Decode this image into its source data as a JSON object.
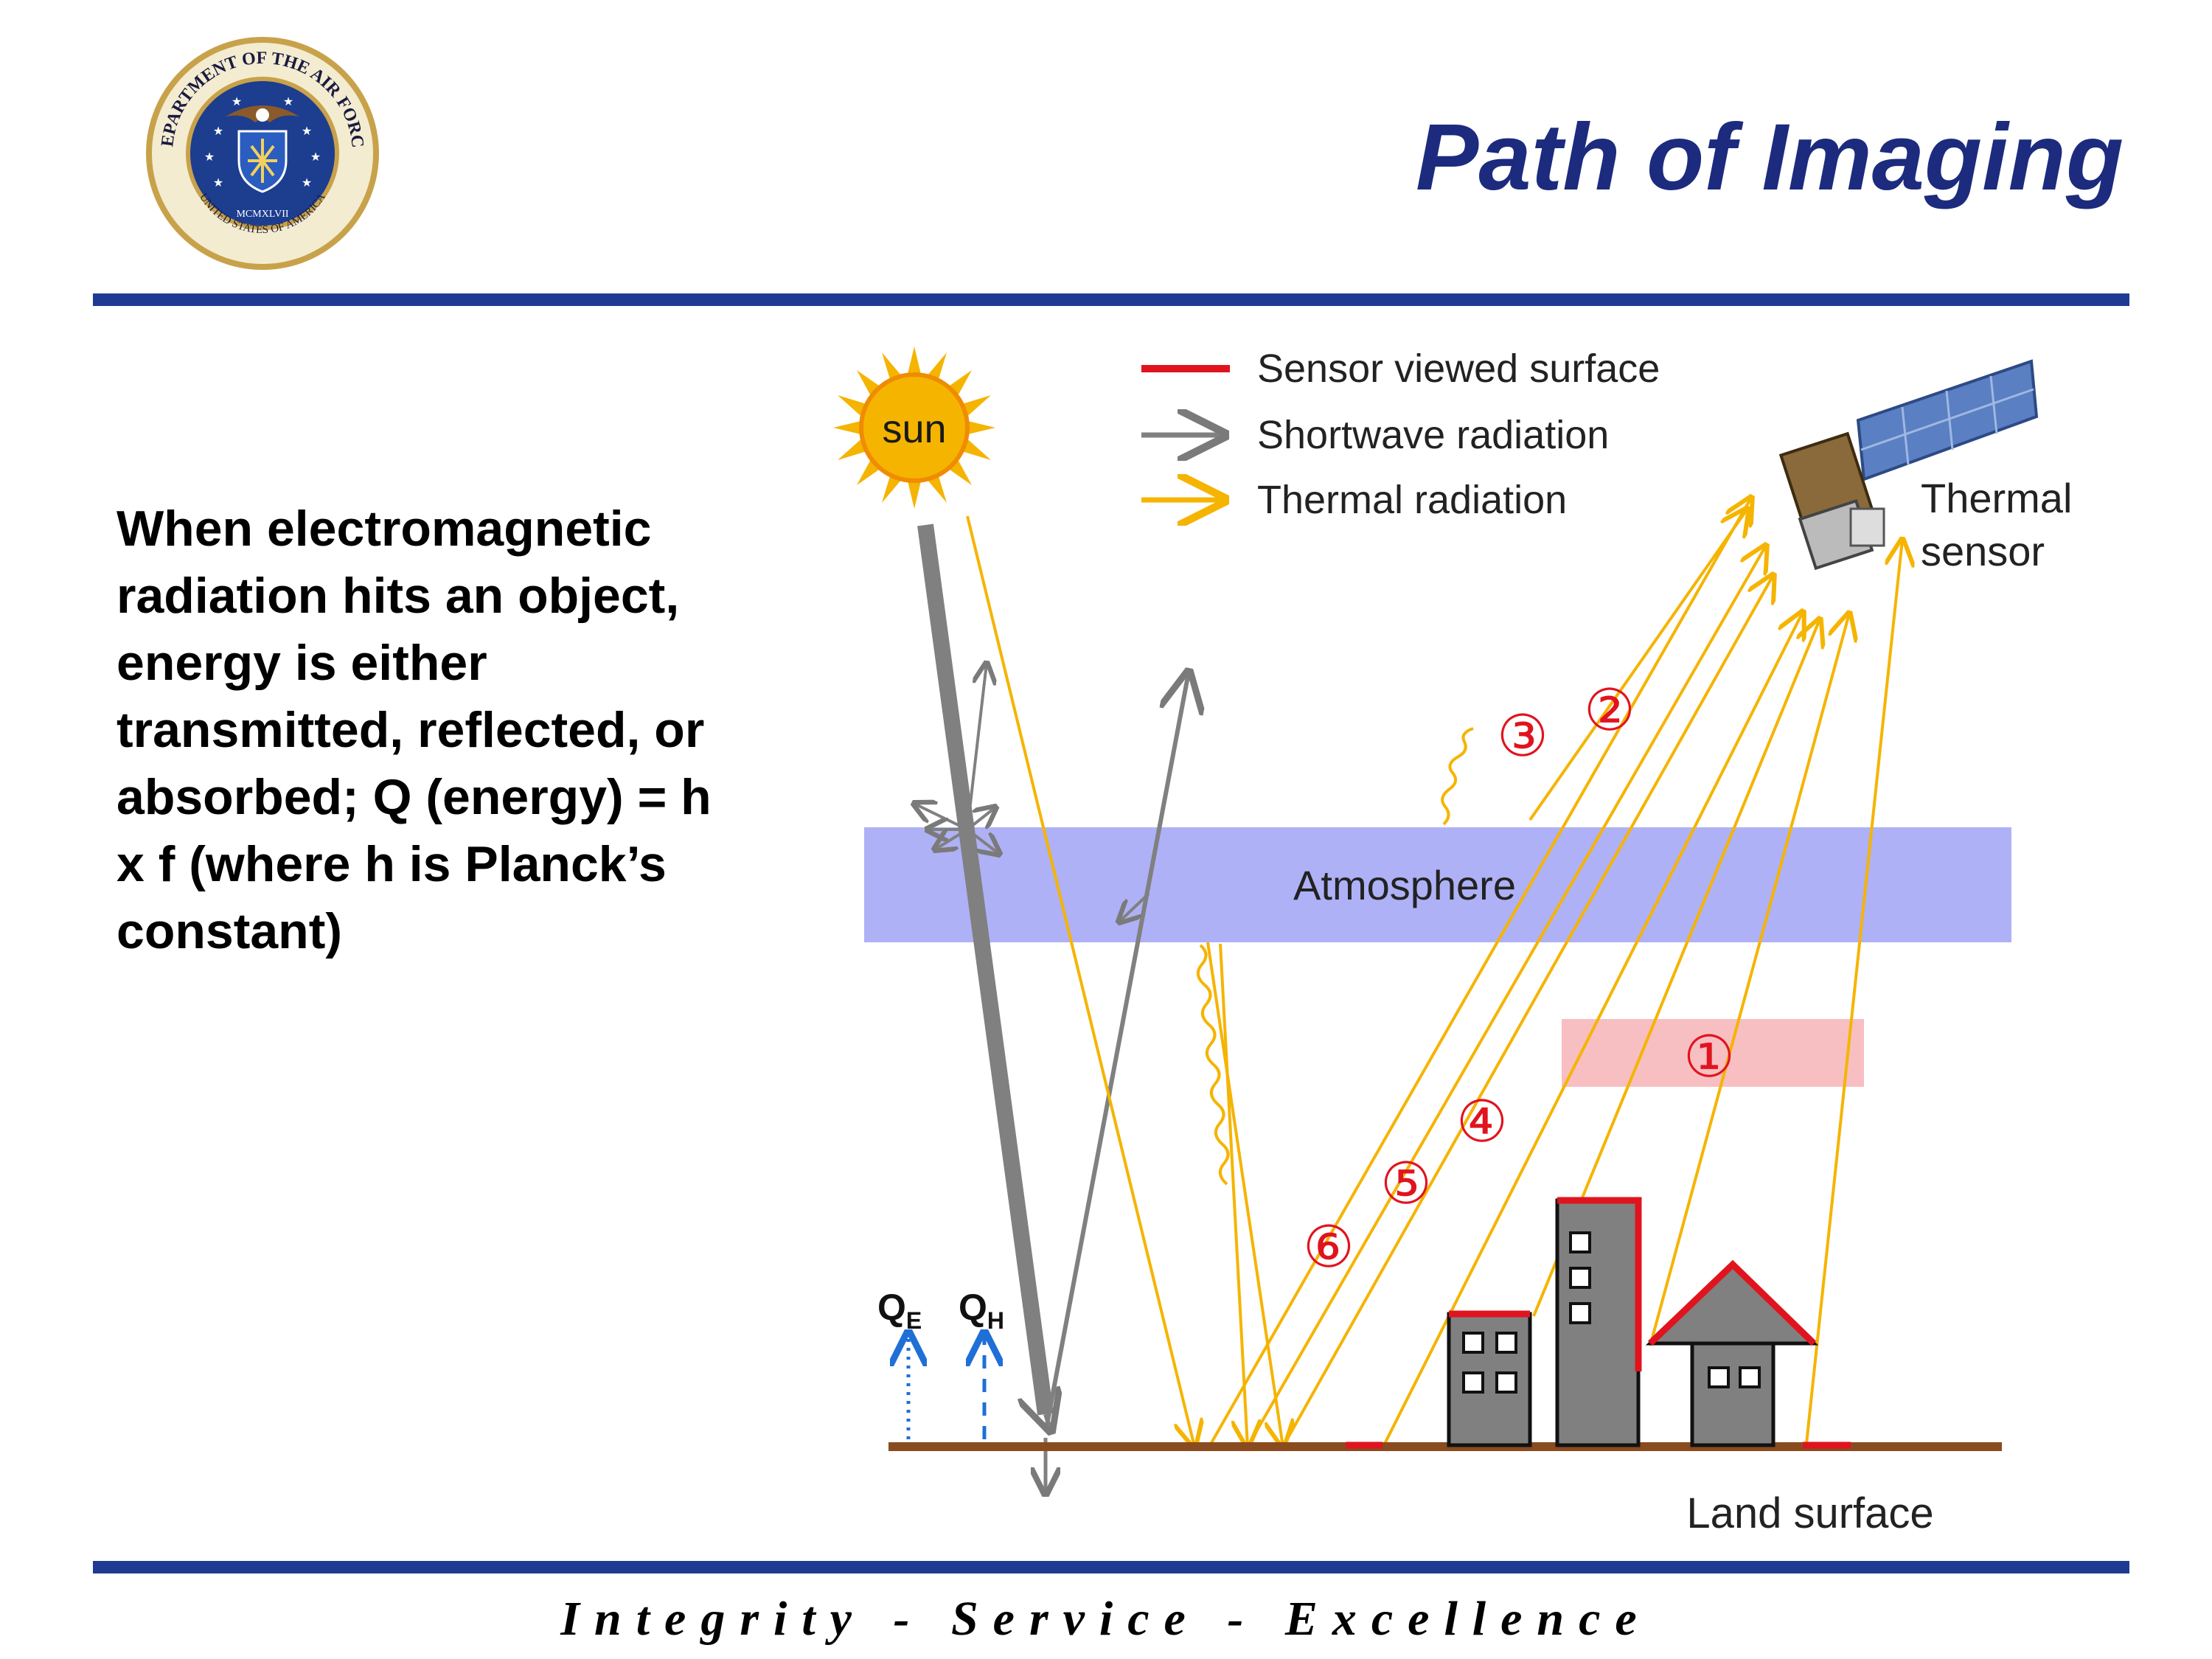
{
  "slide": {
    "title": "Path of Imaging",
    "body": "When electromagnetic radiation hits an object, energy is either transmitted, reflected, or absorbed; Q (energy) = h x f (where h is Planck’s constant)",
    "footer": "Integrity - Service - Excellence",
    "seal": {
      "top_text": "DEPARTMENT OF THE AIR FORCE",
      "bottom_text": "UNITED STATES OF AMERICA",
      "year": "MCMXLVII"
    }
  },
  "diagram": {
    "sun_label": "sun",
    "legend": [
      {
        "label": "Sensor viewed surface",
        "color": "#e0141e",
        "icon": "red-line"
      },
      {
        "label": "Shortwave radiation",
        "color": "#808080",
        "icon": "gray-arrow"
      },
      {
        "label": "Thermal radiation",
        "color": "#f5b400",
        "icon": "yellow-arrow"
      }
    ],
    "sensor_label_line1": "Thermal",
    "sensor_label_line2": "sensor",
    "atmosphere_label": "Atmosphere",
    "land_label": "Land surface",
    "flux_e": {
      "main": "Q",
      "sub": "E"
    },
    "flux_h": {
      "main": "Q",
      "sub": "H"
    },
    "path_numbers": [
      "①",
      "②",
      "③",
      "④",
      "⑤",
      "⑥"
    ]
  }
}
